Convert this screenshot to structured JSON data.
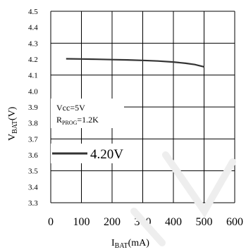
{
  "chart_data": {
    "type": "line",
    "title": "",
    "xlabel": {
      "main": "I",
      "sub": "BAT",
      "unit": "(mA)"
    },
    "ylabel": {
      "main": "V",
      "sub": "BAT",
      "unit": "(V)"
    },
    "xlim": [
      0,
      600
    ],
    "ylim": [
      3.3,
      4.5
    ],
    "x_ticks": [
      0,
      100,
      200,
      300,
      400,
      500,
      600
    ],
    "x_tick_labels": [
      "0",
      "100",
      "200",
      "300",
      "400",
      "500",
      "600"
    ],
    "y_ticks": [
      3.3,
      3.4,
      3.5,
      3.6,
      3.7,
      3.8,
      3.9,
      4.0,
      4.1,
      4.2,
      4.3,
      4.4,
      4.5
    ],
    "y_tick_labels": [
      "3.3",
      "3.4",
      "3.5",
      "3.6",
      "3.7",
      "3.8",
      "3.9",
      "4.0",
      "4.1",
      "4.2",
      "4.3",
      "4.4",
      "4.5"
    ],
    "grid": true,
    "annotations": [
      {
        "main": "Vcc=5V"
      },
      {
        "main": "R",
        "sub": "PROG",
        "tail": "=1.2K"
      }
    ],
    "legend": {
      "placement": "center-left",
      "label": "4.20V"
    },
    "series": [
      {
        "name": "4.20V",
        "color": "#333333",
        "x": [
          50,
          100,
          150,
          200,
          250,
          300,
          350,
          400,
          440,
          470,
          500
        ],
        "y": [
          4.202,
          4.201,
          4.199,
          4.197,
          4.195,
          4.192,
          4.188,
          4.182,
          4.174,
          4.166,
          4.152
        ]
      }
    ]
  }
}
